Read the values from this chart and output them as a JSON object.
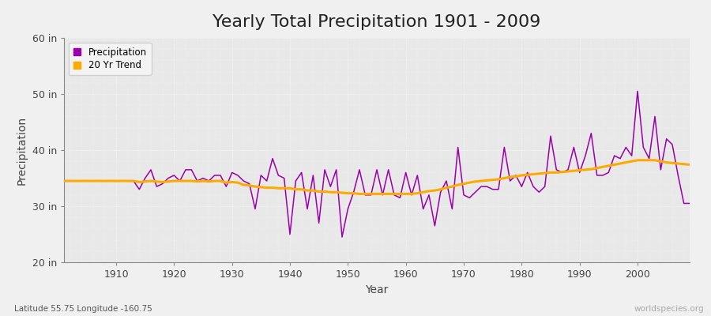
{
  "title": "Yearly Total Precipitation 1901 - 2009",
  "xlabel": "Year",
  "ylabel": "Precipitation",
  "subtitle": "Latitude 55.75 Longitude -160.75",
  "watermark": "worldspecies.org",
  "years": [
    1901,
    1902,
    1903,
    1904,
    1905,
    1906,
    1907,
    1908,
    1909,
    1910,
    1911,
    1912,
    1913,
    1914,
    1915,
    1916,
    1917,
    1918,
    1919,
    1920,
    1921,
    1922,
    1923,
    1924,
    1925,
    1926,
    1927,
    1928,
    1929,
    1930,
    1931,
    1932,
    1933,
    1934,
    1935,
    1936,
    1937,
    1938,
    1939,
    1940,
    1941,
    1942,
    1943,
    1944,
    1945,
    1946,
    1947,
    1948,
    1949,
    1950,
    1951,
    1952,
    1953,
    1954,
    1955,
    1956,
    1957,
    1958,
    1959,
    1960,
    1961,
    1962,
    1963,
    1964,
    1965,
    1966,
    1967,
    1968,
    1969,
    1970,
    1971,
    1972,
    1973,
    1974,
    1975,
    1976,
    1977,
    1978,
    1979,
    1980,
    1981,
    1982,
    1983,
    1984,
    1985,
    1986,
    1987,
    1988,
    1989,
    1990,
    1991,
    1992,
    1993,
    1994,
    1995,
    1996,
    1997,
    1998,
    1999,
    2000,
    2001,
    2002,
    2003,
    2004,
    2005,
    2006,
    2007,
    2008,
    2009
  ],
  "precip": [
    34.5,
    34.5,
    34.5,
    34.5,
    34.5,
    34.5,
    34.5,
    34.5,
    34.5,
    34.5,
    34.5,
    34.5,
    34.5,
    33.0,
    35.0,
    36.5,
    33.5,
    34.0,
    35.0,
    35.5,
    34.5,
    36.5,
    36.5,
    34.5,
    35.0,
    34.5,
    35.5,
    35.5,
    33.5,
    36.0,
    35.5,
    34.5,
    34.0,
    29.5,
    35.5,
    34.5,
    38.5,
    35.5,
    35.0,
    25.0,
    34.5,
    36.0,
    29.5,
    35.5,
    27.0,
    36.5,
    33.5,
    36.5,
    24.5,
    29.5,
    32.5,
    36.5,
    32.0,
    32.0,
    36.5,
    32.0,
    36.5,
    32.0,
    31.5,
    36.0,
    32.0,
    35.5,
    29.5,
    32.0,
    26.5,
    32.5,
    34.5,
    29.5,
    40.5,
    32.0,
    31.5,
    32.5,
    33.5,
    33.5,
    33.0,
    33.0,
    40.5,
    34.5,
    35.5,
    33.5,
    36.0,
    33.5,
    32.5,
    33.5,
    42.5,
    36.5,
    36.0,
    36.5,
    40.5,
    36.0,
    39.0,
    43.0,
    35.5,
    35.5,
    36.0,
    39.0,
    38.5,
    40.5,
    39.0,
    50.5,
    40.5,
    38.5,
    46.0,
    36.5,
    42.0,
    41.0,
    35.5,
    30.5,
    30.5
  ],
  "trend": [
    34.5,
    34.5,
    34.5,
    34.5,
    34.5,
    34.5,
    34.5,
    34.5,
    34.5,
    34.5,
    34.5,
    34.5,
    34.5,
    34.3,
    34.4,
    34.5,
    34.4,
    34.3,
    34.4,
    34.5,
    34.5,
    34.5,
    34.5,
    34.4,
    34.5,
    34.4,
    34.5,
    34.5,
    34.2,
    34.3,
    34.2,
    33.8,
    33.7,
    33.5,
    33.4,
    33.3,
    33.3,
    33.2,
    33.2,
    33.2,
    33.0,
    33.0,
    32.8,
    32.8,
    32.6,
    32.6,
    32.5,
    32.5,
    32.4,
    32.3,
    32.3,
    32.2,
    32.2,
    32.2,
    32.2,
    32.2,
    32.2,
    32.2,
    32.2,
    32.2,
    32.2,
    32.3,
    32.5,
    32.7,
    32.8,
    33.0,
    33.3,
    33.5,
    33.8,
    34.0,
    34.2,
    34.4,
    34.5,
    34.6,
    34.7,
    34.8,
    35.0,
    35.2,
    35.3,
    35.5,
    35.6,
    35.7,
    35.8,
    35.9,
    36.0,
    36.0,
    36.1,
    36.2,
    36.3,
    36.4,
    36.5,
    36.6,
    36.8,
    37.0,
    37.2,
    37.4,
    37.6,
    37.8,
    38.0,
    38.2,
    38.2,
    38.2,
    38.2,
    38.0,
    37.8,
    37.7,
    37.6,
    37.5,
    37.4
  ],
  "precip_color": "#9900aa",
  "trend_color": "#ffaa00",
  "fig_bg_color": "#f0f0f0",
  "plot_bg_color": "#e8e8e8",
  "grid_color": "#ffffff",
  "ylim": [
    20,
    60
  ],
  "yticks": [
    20,
    30,
    40,
    50,
    60
  ],
  "ytick_labels": [
    "20 in",
    "30 in",
    "40 in",
    "50 in",
    "60 in"
  ],
  "xlim": [
    1901,
    2009
  ],
  "xticks": [
    1910,
    1920,
    1930,
    1940,
    1950,
    1960,
    1970,
    1980,
    1990,
    2000
  ],
  "title_fontsize": 16,
  "axis_label_fontsize": 10,
  "tick_fontsize": 9
}
